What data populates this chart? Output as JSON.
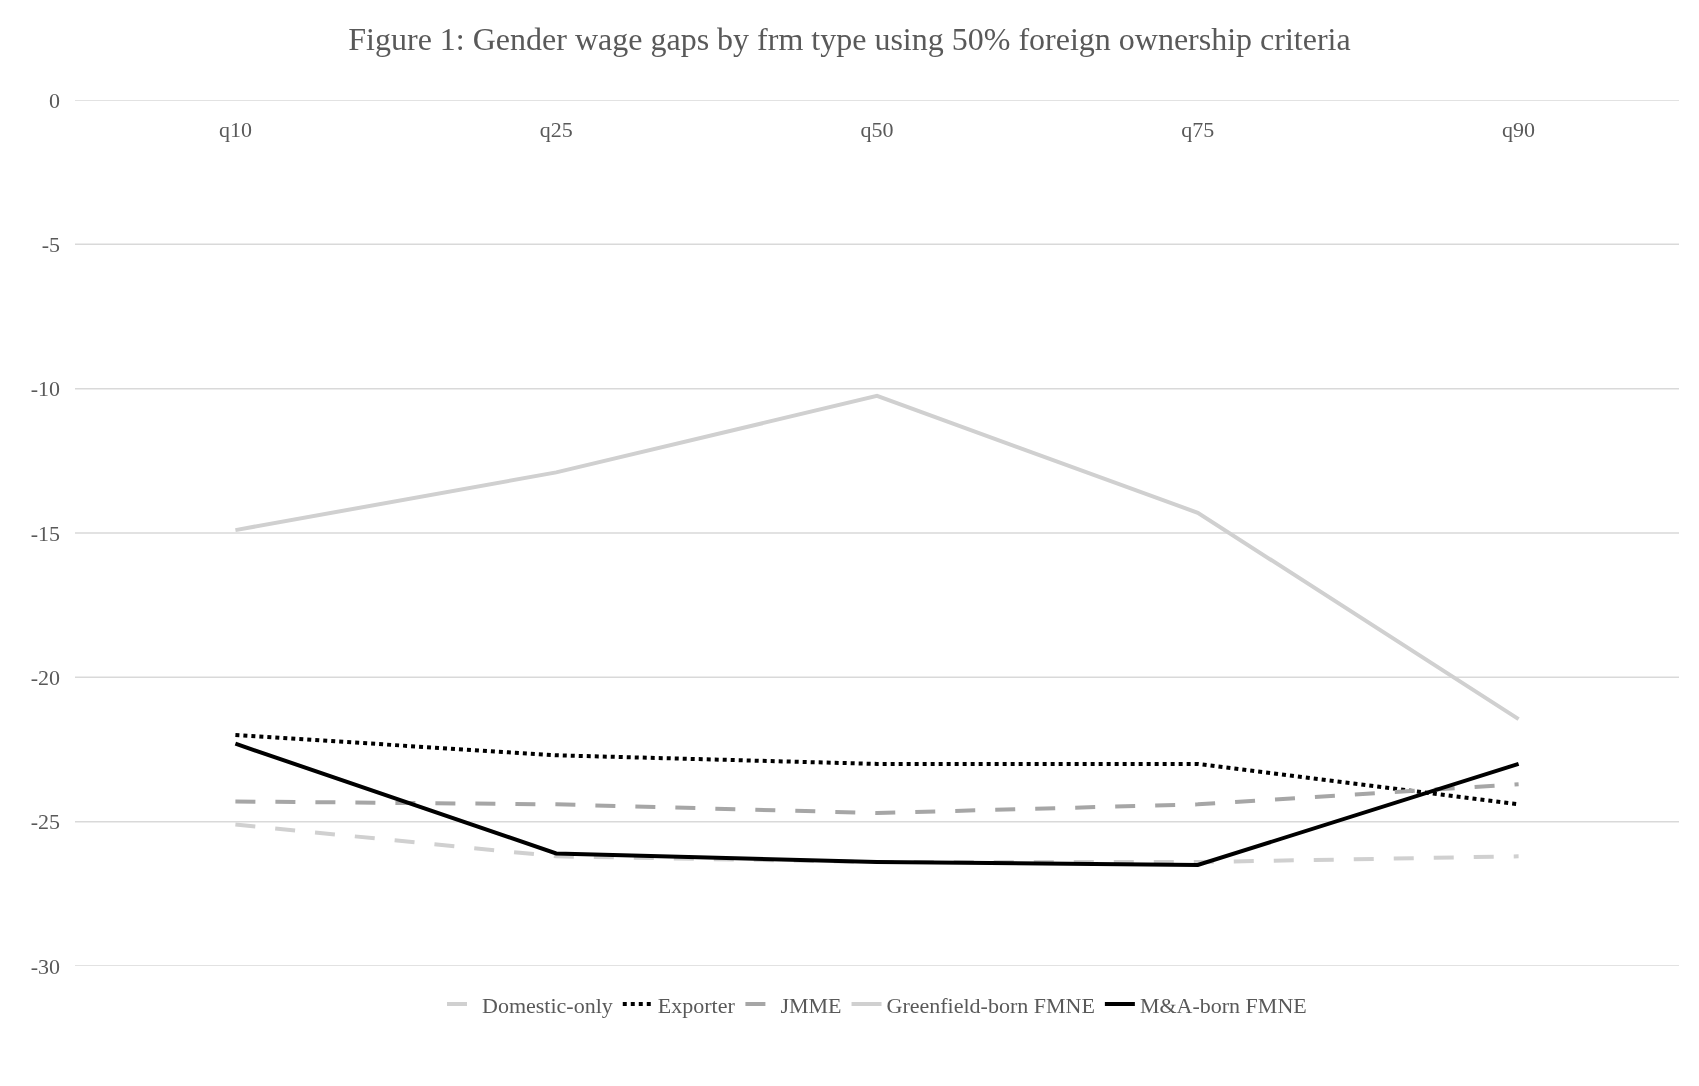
{
  "chart_data": {
    "type": "line",
    "title": "Figure 1: Gender wage gaps by frm type using 50% foreign ownership criteria",
    "categories": [
      "q10",
      "q25",
      "q50",
      "q75",
      "q90"
    ],
    "series": [
      {
        "name": "Domestic-only",
        "color": "#d0d0d0",
        "line_style": "dashed",
        "values": [
          -25.1,
          -26.2,
          -26.4,
          -26.4,
          -26.2
        ]
      },
      {
        "name": "Exporter",
        "color": "#000000",
        "line_style": "dotted",
        "values": [
          -22.0,
          -22.7,
          -23.0,
          -23.0,
          -24.4
        ]
      },
      {
        "name": "JMME",
        "color": "#a6a6a6",
        "line_style": "dashed",
        "values": [
          -24.3,
          -24.4,
          -24.7,
          -24.4,
          -23.7
        ]
      },
      {
        "name": "Greenfield-born FMNE",
        "color": "#d0d0d0",
        "line_style": "solid",
        "values": [
          -14.9,
          -12.9,
          -10.25,
          -14.3,
          -21.45
        ]
      },
      {
        "name": "M&A-born FMNE",
        "color": "#000000",
        "line_style": "solid",
        "values": [
          -22.3,
          -26.1,
          -26.4,
          -26.5,
          -23.0
        ]
      }
    ],
    "ylim": [
      -30,
      0
    ],
    "yticks": [
      0,
      -5,
      -10,
      -15,
      -20,
      -25,
      -30
    ],
    "grid": "y",
    "legend": "bottom",
    "marker": "none"
  }
}
